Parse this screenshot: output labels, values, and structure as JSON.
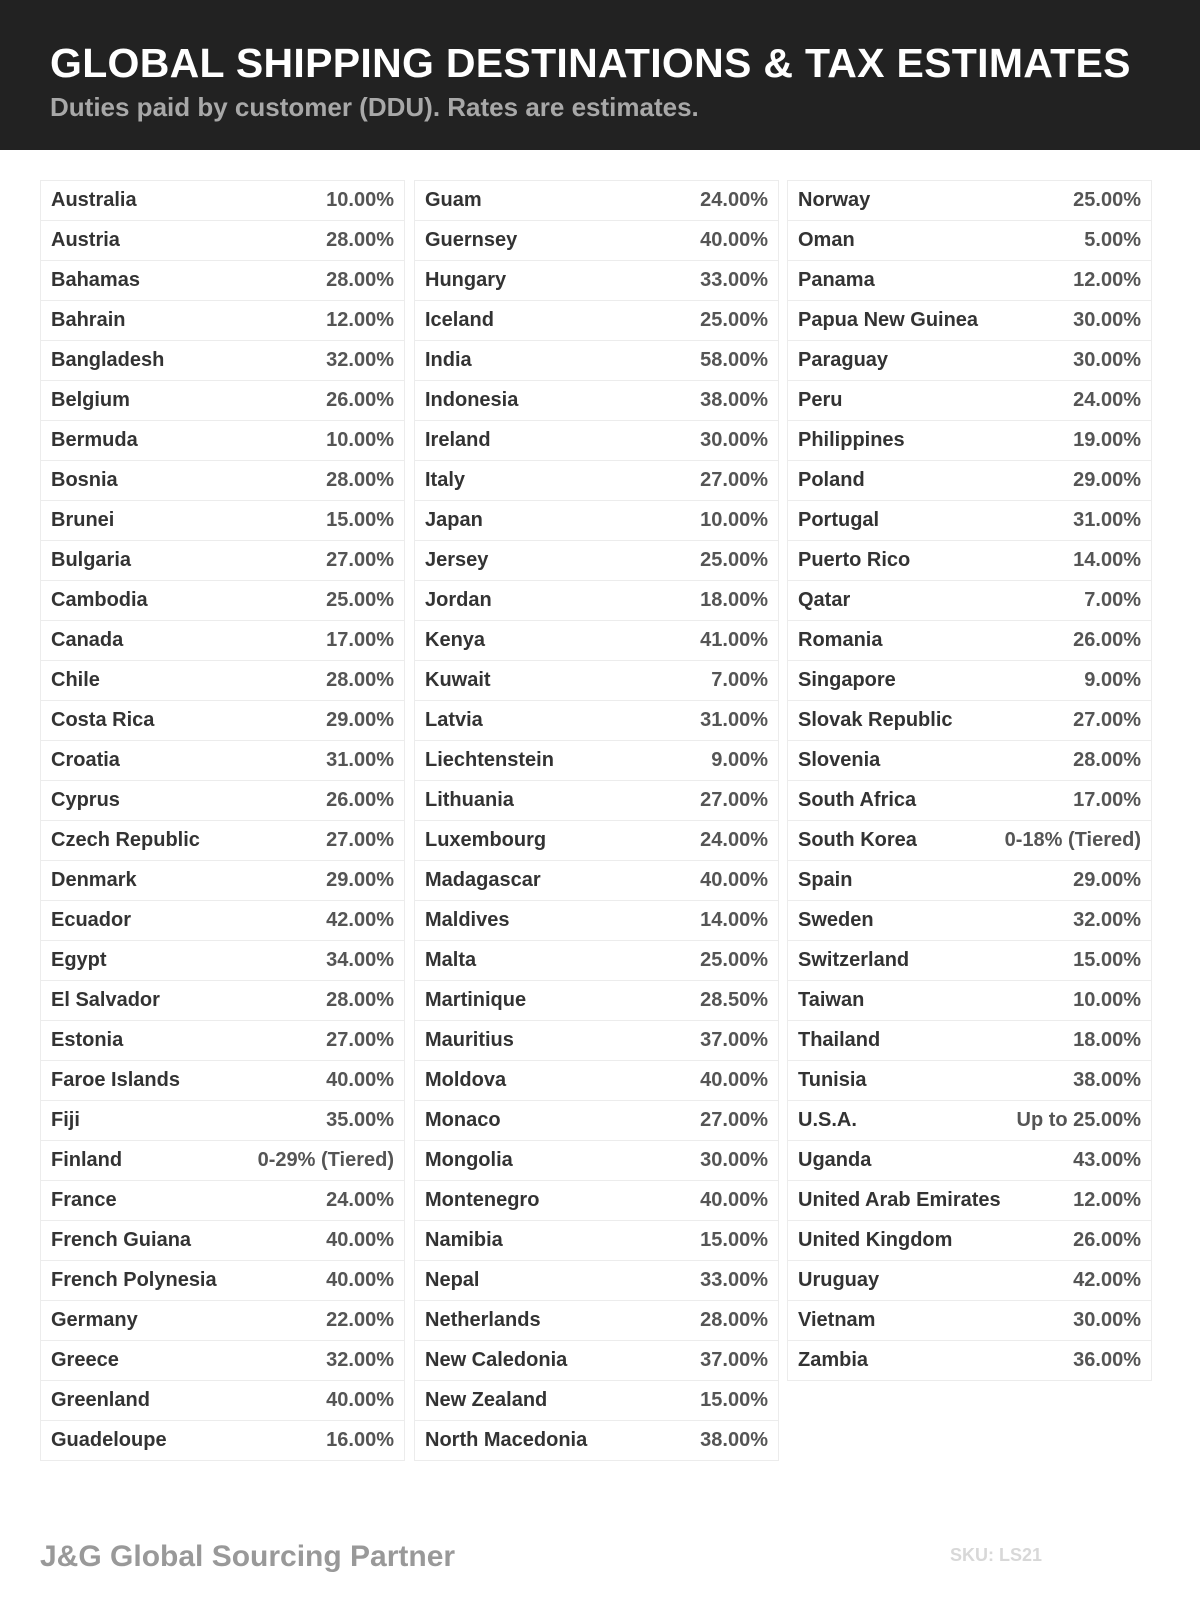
{
  "header": {
    "title": "GLOBAL SHIPPING DESTINATIONS & TAX ESTIMATES",
    "subtitle": "Duties paid by customer (DDU). Rates are estimates."
  },
  "columns": [
    [
      [
        "Australia",
        "10.00%"
      ],
      [
        "Austria",
        "28.00%"
      ],
      [
        "Bahamas",
        "28.00%"
      ],
      [
        "Bahrain",
        "12.00%"
      ],
      [
        "Bangladesh",
        "32.00%"
      ],
      [
        "Belgium",
        "26.00%"
      ],
      [
        "Bermuda",
        "10.00%"
      ],
      [
        "Bosnia",
        "28.00%"
      ],
      [
        "Brunei",
        "15.00%"
      ],
      [
        "Bulgaria",
        "27.00%"
      ],
      [
        "Cambodia",
        "25.00%"
      ],
      [
        "Canada",
        "17.00%"
      ],
      [
        "Chile",
        "28.00%"
      ],
      [
        "Costa Rica",
        "29.00%"
      ],
      [
        "Croatia",
        "31.00%"
      ],
      [
        "Cyprus",
        "26.00%"
      ],
      [
        "Czech Republic",
        "27.00%"
      ],
      [
        "Denmark",
        "29.00%"
      ],
      [
        "Ecuador",
        "42.00%"
      ],
      [
        "Egypt",
        "34.00%"
      ],
      [
        "El Salvador",
        "28.00%"
      ],
      [
        "Estonia",
        "27.00%"
      ],
      [
        "Faroe Islands",
        "40.00%"
      ],
      [
        "Fiji",
        "35.00%"
      ],
      [
        "Finland",
        "0-29% (Tiered)"
      ],
      [
        "France",
        "24.00%"
      ],
      [
        "French Guiana",
        "40.00%"
      ],
      [
        "French Polynesia",
        "40.00%"
      ],
      [
        "Germany",
        "22.00%"
      ],
      [
        "Greece",
        "32.00%"
      ],
      [
        "Greenland",
        "40.00%"
      ],
      [
        "Guadeloupe",
        "16.00%"
      ]
    ],
    [
      [
        "Guam",
        "24.00%"
      ],
      [
        "Guernsey",
        "40.00%"
      ],
      [
        "Hungary",
        "33.00%"
      ],
      [
        "Iceland",
        "25.00%"
      ],
      [
        "India",
        "58.00%"
      ],
      [
        "Indonesia",
        "38.00%"
      ],
      [
        "Ireland",
        "30.00%"
      ],
      [
        "Italy",
        "27.00%"
      ],
      [
        "Japan",
        "10.00%"
      ],
      [
        "Jersey",
        "25.00%"
      ],
      [
        "Jordan",
        "18.00%"
      ],
      [
        "Kenya",
        "41.00%"
      ],
      [
        "Kuwait",
        "7.00%"
      ],
      [
        "Latvia",
        "31.00%"
      ],
      [
        "Liechtenstein",
        "9.00%"
      ],
      [
        "Lithuania",
        "27.00%"
      ],
      [
        "Luxembourg",
        "24.00%"
      ],
      [
        "Madagascar",
        "40.00%"
      ],
      [
        "Maldives",
        "14.00%"
      ],
      [
        "Malta",
        "25.00%"
      ],
      [
        "Martinique",
        "28.50%"
      ],
      [
        "Mauritius",
        "37.00%"
      ],
      [
        "Moldova",
        "40.00%"
      ],
      [
        "Monaco",
        "27.00%"
      ],
      [
        "Mongolia",
        "30.00%"
      ],
      [
        "Montenegro",
        "40.00%"
      ],
      [
        "Namibia",
        "15.00%"
      ],
      [
        "Nepal",
        "33.00%"
      ],
      [
        "Netherlands",
        "28.00%"
      ],
      [
        "New Caledonia",
        "37.00%"
      ],
      [
        "New Zealand",
        "15.00%"
      ],
      [
        "North Macedonia",
        "38.00%"
      ]
    ],
    [
      [
        "Norway",
        "25.00%"
      ],
      [
        "Oman",
        "5.00%"
      ],
      [
        "Panama",
        "12.00%"
      ],
      [
        "Papua New Guinea",
        "30.00%"
      ],
      [
        "Paraguay",
        "30.00%"
      ],
      [
        "Peru",
        "24.00%"
      ],
      [
        "Philippines",
        "19.00%"
      ],
      [
        "Poland",
        "29.00%"
      ],
      [
        "Portugal",
        "31.00%"
      ],
      [
        "Puerto Rico",
        "14.00%"
      ],
      [
        "Qatar",
        "7.00%"
      ],
      [
        "Romania",
        "26.00%"
      ],
      [
        "Singapore",
        "9.00%"
      ],
      [
        "Slovak Republic",
        "27.00%"
      ],
      [
        "Slovenia",
        "28.00%"
      ],
      [
        "South Africa",
        "17.00%"
      ],
      [
        "South Korea",
        "0-18% (Tiered)"
      ],
      [
        "Spain",
        "29.00%"
      ],
      [
        "Sweden",
        "32.00%"
      ],
      [
        "Switzerland",
        "15.00%"
      ],
      [
        "Taiwan",
        "10.00%"
      ],
      [
        "Thailand",
        "18.00%"
      ],
      [
        "Tunisia",
        "38.00%"
      ],
      [
        "U.S.A.",
        "Up to 25.00%"
      ],
      [
        "Uganda",
        "43.00%"
      ],
      [
        "United Arab Emirates",
        "12.00%"
      ],
      [
        "United Kingdom",
        "26.00%"
      ],
      [
        "Uruguay",
        "42.00%"
      ],
      [
        "Vietnam",
        "30.00%"
      ],
      [
        "Zambia",
        "36.00%"
      ]
    ]
  ],
  "footer": {
    "brand": "J&G Global Sourcing Partner",
    "sku": "SKU: LS21"
  }
}
